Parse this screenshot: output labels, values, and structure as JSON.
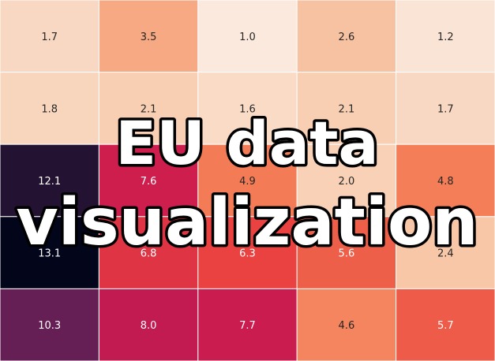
{
  "overlay": {
    "line1": "EU data",
    "line2": "visualization"
  },
  "chart_data": {
    "type": "heatmap",
    "rows": 5,
    "cols": 5,
    "values": [
      [
        1.7,
        3.5,
        1.0,
        2.6,
        1.2
      ],
      [
        1.8,
        2.1,
        1.6,
        2.1,
        1.7
      ],
      [
        12.1,
        7.6,
        4.9,
        2.0,
        4.8
      ],
      [
        13.1,
        6.8,
        6.3,
        5.6,
        2.4
      ],
      [
        10.3,
        8.0,
        7.7,
        4.6,
        5.7
      ]
    ],
    "value_range": [
      1.0,
      13.1
    ],
    "colormap": [
      "#fae9dc",
      "#f7c9aa",
      "#f6a47c",
      "#f37651",
      "#e83f3f",
      "#cb1b4f",
      "#9f1a5b",
      "#611f53",
      "#2e1739",
      "#03051a"
    ]
  }
}
